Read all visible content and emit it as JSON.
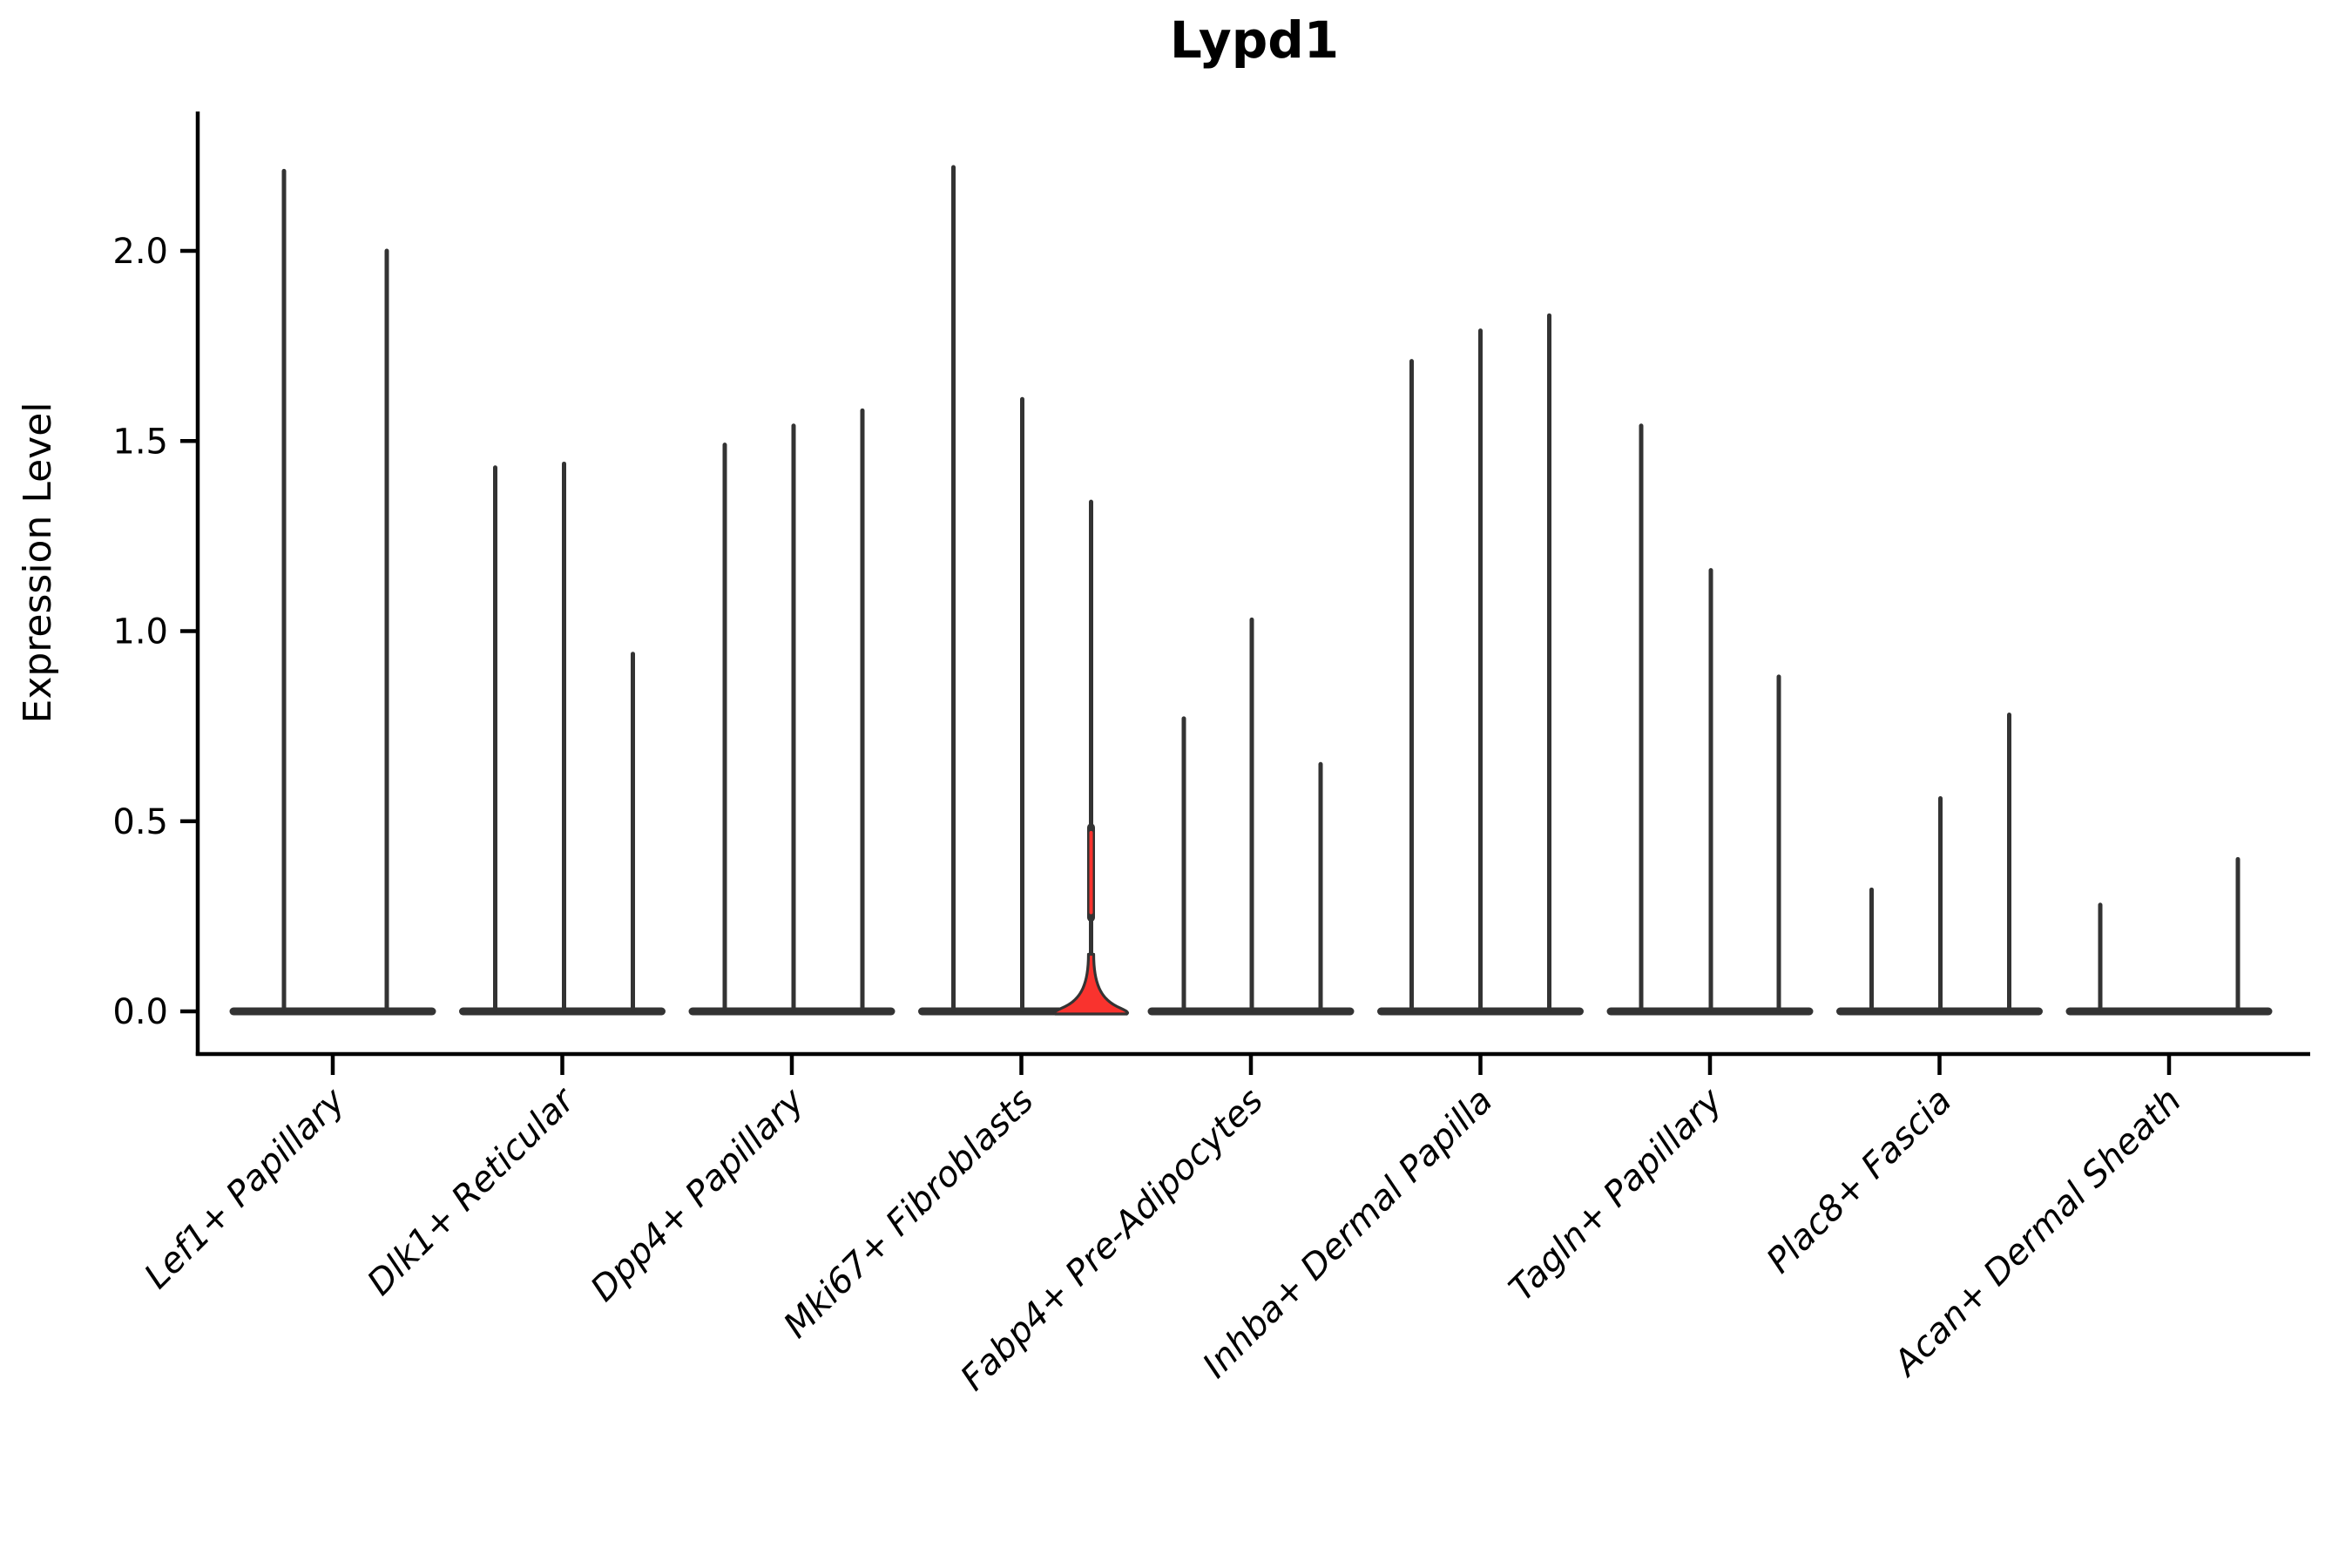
{
  "title": "Lypd1",
  "ylabel": "Expression Level",
  "chart_data": {
    "type": "violin",
    "title": "Lypd1",
    "ylabel": "Expression Level",
    "xlabel": "",
    "yticks": [
      0.0,
      0.5,
      1.0,
      1.5,
      2.0
    ],
    "ylim": [
      -0.11,
      2.36
    ],
    "grid": false,
    "legend": "none",
    "categories": [
      "Lef1+ Papillary",
      "Dlk1+ Reticular",
      "Dpp4+ Papillary",
      "Mki67+ Fibroblasts",
      "Fabp4+ Pre-Adipocytes",
      "Inhba+ Dermal Papilla",
      "Tagln+ Papillary",
      "Plac8+ Fascia",
      "Acan+ Dermal Sheath"
    ],
    "description": "Grouped violin plot of Lypd1 expression; each cluster shows 2-3 sample violins collapsed to thin spikes at zero with narrow max-value stems; one violin in Mki67+ Fibroblasts is highlighted red with a visible density body near zero.",
    "groups": [
      {
        "label": "Lef1+ Papillary",
        "violins": [
          {
            "offset": -56,
            "max": 2.21
          },
          {
            "offset": 62,
            "max": 2.0
          }
        ]
      },
      {
        "label": "Dlk1+ Reticular",
        "violins": [
          {
            "offset": -77,
            "max": 1.43
          },
          {
            "offset": 2,
            "max": 1.44
          },
          {
            "offset": 81,
            "max": 0.94
          }
        ]
      },
      {
        "label": "Dpp4+ Papillary",
        "violins": [
          {
            "offset": -77,
            "max": 1.49
          },
          {
            "offset": 2,
            "max": 1.54
          },
          {
            "offset": 81,
            "max": 1.58
          }
        ]
      },
      {
        "label": "Mki67+ Fibroblasts",
        "violins": [
          {
            "offset": -78,
            "max": 2.22
          },
          {
            "offset": 1,
            "max": 1.61
          },
          {
            "offset": 80,
            "max": 1.34,
            "highlight": true
          }
        ]
      },
      {
        "label": "Fabp4+ Pre-Adipocytes",
        "violins": [
          {
            "offset": -77,
            "max": 0.77
          },
          {
            "offset": 1,
            "max": 1.03
          },
          {
            "offset": 80,
            "max": 0.65
          }
        ]
      },
      {
        "label": "Inhba+ Dermal Papilla",
        "violins": [
          {
            "offset": -79,
            "max": 1.71
          },
          {
            "offset": 0,
            "max": 1.79
          },
          {
            "offset": 79,
            "max": 1.83
          }
        ]
      },
      {
        "label": "Tagln+ Papillary",
        "violins": [
          {
            "offset": -79,
            "max": 1.54
          },
          {
            "offset": 1,
            "max": 1.16
          },
          {
            "offset": 79,
            "max": 0.88
          }
        ]
      },
      {
        "label": "Plac8+ Fascia",
        "violins": [
          {
            "offset": -78,
            "max": 0.32
          },
          {
            "offset": 1,
            "max": 0.56
          },
          {
            "offset": 80,
            "max": 0.78
          }
        ]
      },
      {
        "label": "Acan+ Dermal Sheath",
        "violins": [
          {
            "offset": -79,
            "max": 0.28
          },
          {
            "offset": 0,
            "max": 0.0
          },
          {
            "offset": 79,
            "max": 0.4
          }
        ]
      }
    ],
    "highlight": {
      "group": "Mki67+ Fibroblasts",
      "violin_index": 2,
      "max": 1.34,
      "body_bulge_value_range": [
        0.26,
        0.47
      ],
      "base_flare_top_value": 0.15
    },
    "colors": {
      "background": "#ffffff",
      "axis": "#000000",
      "violin_edge": "#333333",
      "highlight_fill": "#f9332e",
      "text": "#000000"
    }
  }
}
